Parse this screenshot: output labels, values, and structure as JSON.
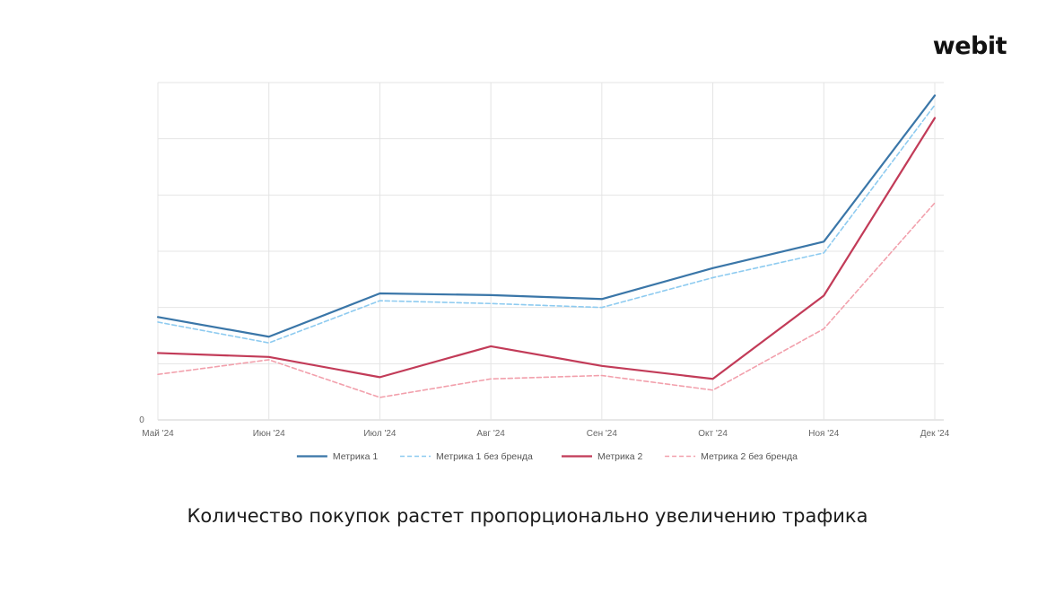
{
  "logo": {
    "text": "webit"
  },
  "caption": "Количество покупок растет пропорционально увеличению трафика",
  "chart_data": {
    "type": "line",
    "categories": [
      "Май '24",
      "Июн '24",
      "Июл '24",
      "Авг '24",
      "Сен '24",
      "Окт '24",
      "Ноя '24",
      "Дек '24"
    ],
    "y_zero_label": "0",
    "ylim": [
      0,
      6
    ],
    "grid": true,
    "legend_position": "bottom-center",
    "series": [
      {
        "name": "Метрика 1",
        "color": "#3a76a8",
        "dashed": false,
        "values": [
          1.83,
          1.48,
          2.25,
          2.22,
          2.15,
          2.7,
          3.17,
          5.77
        ]
      },
      {
        "name": "Метрика 1 без бренда",
        "color": "#8ecbf0",
        "dashed": true,
        "values": [
          1.74,
          1.37,
          2.12,
          2.07,
          2.0,
          2.53,
          2.97,
          5.6
        ]
      },
      {
        "name": "Метрика 2",
        "color": "#c23b58",
        "dashed": false,
        "values": [
          1.19,
          1.12,
          0.76,
          1.31,
          0.96,
          0.73,
          2.21,
          5.37
        ]
      },
      {
        "name": "Метрика 2 без бренда",
        "color": "#f2a0ac",
        "dashed": true,
        "values": [
          0.81,
          1.07,
          0.4,
          0.73,
          0.79,
          0.53,
          1.62,
          3.86
        ]
      }
    ]
  }
}
